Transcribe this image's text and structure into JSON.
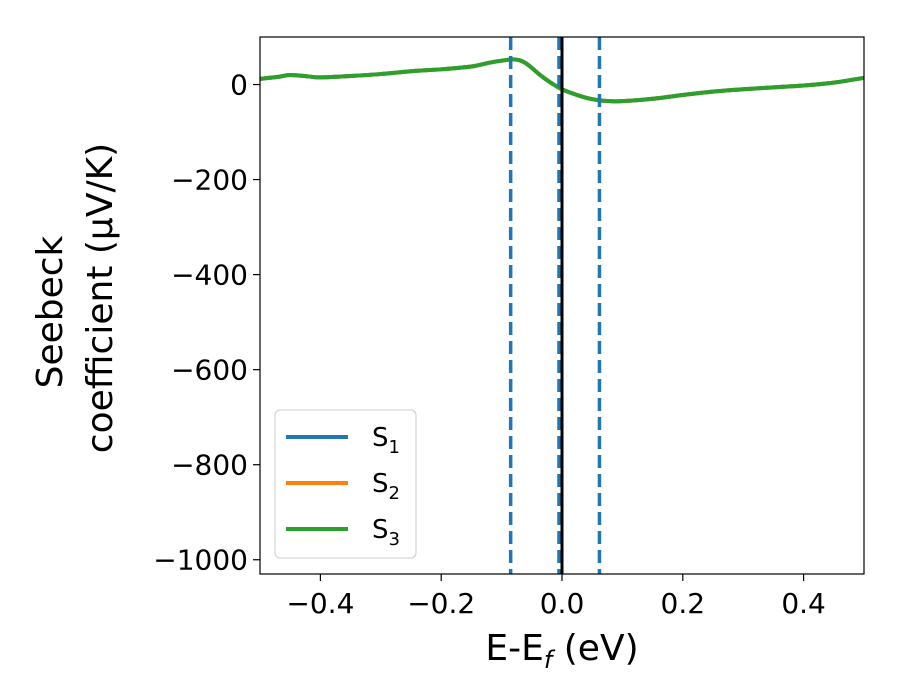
{
  "chart_data": {
    "type": "line",
    "title": "",
    "xlabel": {
      "main": "E-E",
      "sub": "f",
      "tail": " (eV)"
    },
    "ylabel": {
      "line1": "Seebeck",
      "line2": "coefficient  (μV/K)"
    },
    "xlim": [
      -0.5,
      0.5
    ],
    "ylim": [
      -1030,
      100
    ],
    "xticks": [
      -0.4,
      -0.2,
      0.0,
      0.2,
      0.4
    ],
    "xtick_labels": [
      "−0.4",
      "−0.2",
      "0.0",
      "0.2",
      "0.4"
    ],
    "yticks": [
      0,
      -200,
      -400,
      -600,
      -800,
      -1000
    ],
    "ytick_labels": [
      "0",
      "−200",
      "−400",
      "−600",
      "−800",
      "−1000"
    ],
    "grid": false,
    "legend_position": "lower-left",
    "series": [
      {
        "name": "S",
        "name_sub": "1",
        "color": "#1f77b4",
        "x": [
          -0.5,
          -0.47,
          -0.45,
          -0.42,
          -0.4,
          -0.35,
          -0.3,
          -0.25,
          -0.2,
          -0.15,
          -0.12,
          -0.09,
          -0.08,
          -0.07,
          -0.06,
          -0.05,
          -0.04,
          -0.03,
          -0.02,
          -0.01,
          0.0,
          0.02,
          0.04,
          0.06,
          0.08,
          0.1,
          0.15,
          0.2,
          0.25,
          0.3,
          0.35,
          0.4,
          0.45,
          0.5
        ],
        "y": [
          12,
          16,
          20,
          17,
          15,
          18,
          22,
          28,
          32,
          38,
          46,
          52,
          53,
          51,
          45,
          35,
          24,
          14,
          5,
          -3,
          -10,
          -20,
          -28,
          -33,
          -35,
          -35,
          -30,
          -22,
          -15,
          -10,
          -6,
          -2,
          4,
          14
        ]
      },
      {
        "name": "S",
        "name_sub": "2",
        "color": "#ff7f0e",
        "x": [
          -0.5,
          -0.47,
          -0.45,
          -0.42,
          -0.4,
          -0.35,
          -0.3,
          -0.25,
          -0.2,
          -0.15,
          -0.12,
          -0.09,
          -0.08,
          -0.07,
          -0.06,
          -0.05,
          -0.04,
          -0.03,
          -0.02,
          -0.01,
          0.0,
          0.02,
          0.04,
          0.06,
          0.08,
          0.1,
          0.15,
          0.2,
          0.25,
          0.3,
          0.35,
          0.4,
          0.45,
          0.5
        ],
        "y": [
          12,
          16,
          20,
          17,
          15,
          18,
          22,
          28,
          32,
          38,
          46,
          52,
          53,
          51,
          45,
          35,
          24,
          14,
          5,
          -3,
          -10,
          -20,
          -28,
          -33,
          -35,
          -35,
          -30,
          -22,
          -15,
          -10,
          -6,
          -2,
          4,
          14
        ]
      },
      {
        "name": "S",
        "name_sub": "3",
        "color": "#2ca02c",
        "x": [
          -0.5,
          -0.47,
          -0.45,
          -0.42,
          -0.4,
          -0.35,
          -0.3,
          -0.25,
          -0.2,
          -0.15,
          -0.12,
          -0.09,
          -0.08,
          -0.07,
          -0.06,
          -0.05,
          -0.04,
          -0.03,
          -0.02,
          -0.01,
          0.0,
          0.02,
          0.04,
          0.06,
          0.08,
          0.1,
          0.15,
          0.2,
          0.25,
          0.3,
          0.35,
          0.4,
          0.45,
          0.5
        ],
        "y": [
          12,
          16,
          20,
          17,
          15,
          18,
          22,
          28,
          32,
          38,
          46,
          52,
          53,
          51,
          45,
          35,
          24,
          14,
          5,
          -3,
          -10,
          -20,
          -28,
          -33,
          -35,
          -35,
          -30,
          -22,
          -15,
          -10,
          -6,
          -2,
          4,
          14
        ]
      }
    ],
    "vlines": [
      {
        "x": -0.085,
        "style": "dashed",
        "color": "#1f77b4"
      },
      {
        "x": -0.005,
        "style": "dashed",
        "color": "#1f77b4"
      },
      {
        "x": 0.062,
        "style": "dashed",
        "color": "#1f77b4"
      },
      {
        "x": 0.0,
        "style": "solid",
        "color": "#000000"
      }
    ]
  }
}
